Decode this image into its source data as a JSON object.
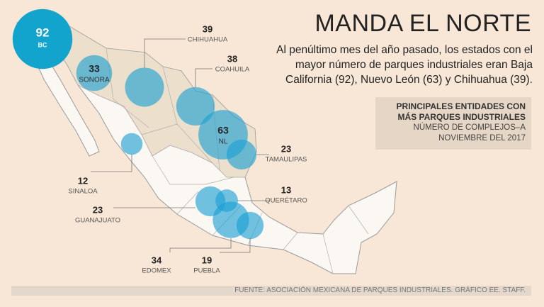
{
  "header": {
    "title": "MANDA EL NORTE",
    "text": "Al penúltimo mes del año pasado, los estados con el mayor número de parques industriales eran Baja California (92), Nuevo León (63) y Chihuahua (39)."
  },
  "legend": {
    "title": "PRINCIPALES ENTIDADES CON MÁS PARQUES INDUSTRIALES",
    "subtitle": "NÚMERO DE COMPLEJOS–A NOVIEMBRE DEL 2017"
  },
  "states": [
    {
      "value": 92,
      "label": "BC"
    },
    {
      "value": 33,
      "label": "SONORA"
    },
    {
      "value": 39,
      "label": "CHIHUAHUA"
    },
    {
      "value": 38,
      "label": "COAHUILA"
    },
    {
      "value": 63,
      "label": "NL"
    },
    {
      "value": 23,
      "label": "TAMAULIPAS"
    },
    {
      "value": 12,
      "label": "SINALOA"
    },
    {
      "value": 13,
      "label": "QUERÉTARO"
    },
    {
      "value": 23,
      "label": "GUANAJUATO"
    },
    {
      "value": 34,
      "label": "EDOMEX"
    },
    {
      "value": 19,
      "label": "PUEBLA"
    }
  ],
  "source": "FUENTE: ASOCIACIÓN MEXICANA DE PARQUES INDUSTRIALES.  GRÁFICO EE. STAFF."
}
